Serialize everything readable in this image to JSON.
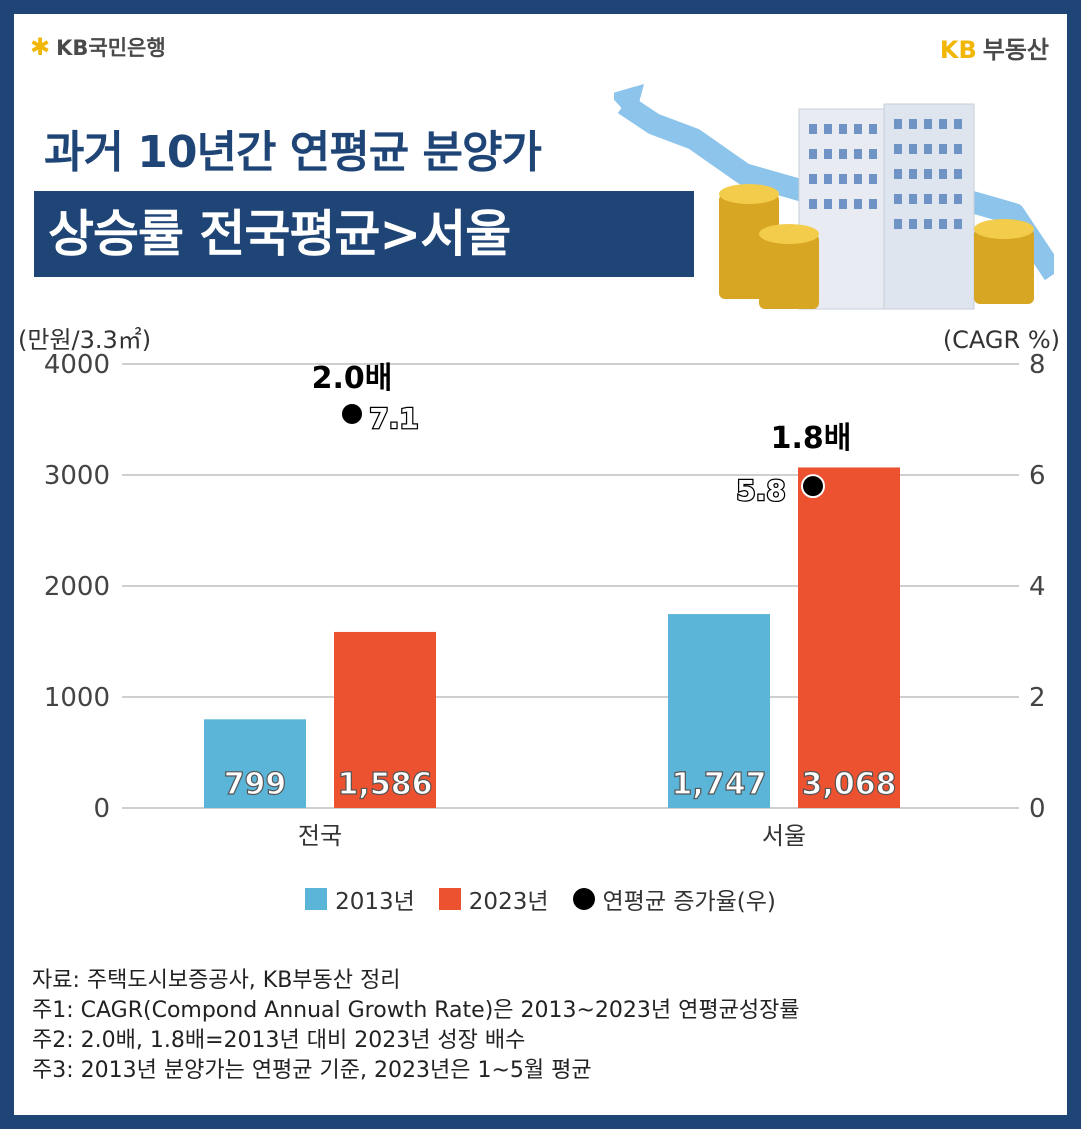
{
  "header": {
    "left_logo": "KB국민은행",
    "right_logo_kb": "KB",
    "right_logo_text": "부동산"
  },
  "title": {
    "line1": "과거 10년간 연평균 분양가",
    "line2": "상승률 전국평균>서울"
  },
  "colors": {
    "navy": "#1f4577",
    "bar_2013": "#5bb5d8",
    "bar_2023": "#ec5130",
    "dot": "#000000",
    "kb_yellow": "#f2b705"
  },
  "chart_data": {
    "type": "bar",
    "categories": [
      "전국",
      "서울"
    ],
    "series": [
      {
        "name": "2013년",
        "values": [
          799,
          1747
        ],
        "labels": [
          "799",
          "1,747"
        ]
      },
      {
        "name": "2023년",
        "values": [
          1586,
          3068
        ],
        "labels": [
          "1,586",
          "3,068"
        ]
      }
    ],
    "secondary": {
      "name": "연평균 증가율(우)",
      "values": [
        7.1,
        5.8
      ],
      "labels": [
        "7.1",
        "5.8"
      ],
      "multiples": [
        "2.0배",
        "1.8배"
      ]
    },
    "ylabel_left": "(만원/3.3㎡)",
    "ylabel_right": "(CAGR %)",
    "ylim_left": [
      0,
      4000
    ],
    "ylim_right": [
      0,
      8
    ],
    "yticks_left": [
      "0",
      "1000",
      "2000",
      "3000",
      "4000"
    ],
    "yticks_right": [
      "0",
      "2",
      "4",
      "6",
      "8"
    ],
    "grid": true,
    "legend": [
      "2013년",
      "2023년",
      "연평균 증가율(우)"
    ]
  },
  "notes": [
    "자료: 주택도시보증공사, KB부동산 정리",
    "주1: CAGR(Compond Annual Growth Rate)은 2013~2023년 연평균성장률",
    "주2: 2.0배, 1.8배=2013년 대비 2023년 성장 배수",
    "주3: 2013년 분양가는 연평균 기준, 2023년은 1~5월 평균"
  ]
}
